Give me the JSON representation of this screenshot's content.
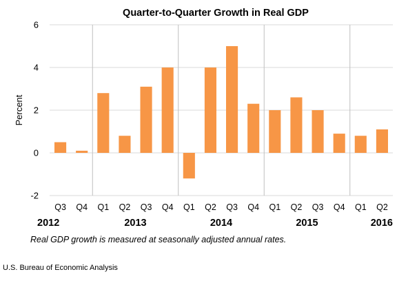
{
  "chart_data": {
    "type": "bar",
    "title": "Quarter-to-Quarter Growth in Real GDP",
    "ylabel": "Percent",
    "xlabel": "",
    "ylim": [
      -2,
      6
    ],
    "yticks": [
      -2,
      0,
      2,
      4,
      6
    ],
    "grid": true,
    "bar_color": "#f79646",
    "categories": [
      "Q3",
      "Q4",
      "Q1",
      "Q2",
      "Q3",
      "Q4",
      "Q1",
      "Q2",
      "Q3",
      "Q4",
      "Q1",
      "Q2",
      "Q3",
      "Q4",
      "Q1",
      "Q2"
    ],
    "values": [
      0.5,
      0.1,
      2.8,
      0.8,
      3.1,
      4.0,
      -1.2,
      4.0,
      5.0,
      2.3,
      2.0,
      2.6,
      2.0,
      0.9,
      0.8,
      1.1
    ],
    "year_groups": [
      {
        "label": "2012",
        "start": 0,
        "end": 1
      },
      {
        "label": "2013",
        "start": 2,
        "end": 5
      },
      {
        "label": "2014",
        "start": 6,
        "end": 9
      },
      {
        "label": "2015",
        "start": 10,
        "end": 13
      },
      {
        "label": "2016",
        "start": 14,
        "end": 15
      }
    ]
  },
  "note": "Real GDP growth is measured at seasonally adjusted annual rates.",
  "source": "U.S. Bureau of Economic Analysis"
}
